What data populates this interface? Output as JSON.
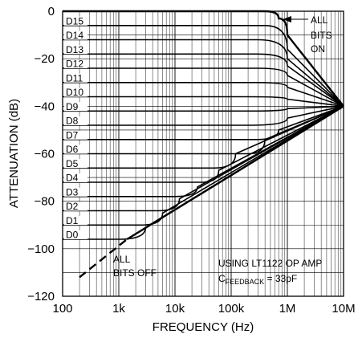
{
  "chart_data": {
    "type": "line",
    "xlabel": "FREQUENCY (Hz)",
    "ylabel": "ATTENUATION (dB)",
    "x_scale": "log",
    "xlim": [
      100,
      10000000
    ],
    "ylim": [
      -120,
      0
    ],
    "grid": true,
    "x_ticks": [
      100,
      1000,
      10000,
      100000,
      1000000,
      10000000
    ],
    "x_tick_labels": [
      "100",
      "1k",
      "10k",
      "100k",
      "1M",
      "10M"
    ],
    "y_ticks": [
      0,
      -20,
      -40,
      -60,
      -80,
      -100,
      -120
    ],
    "y_tick_labels": [
      "0",
      "−20",
      "−40",
      "−60",
      "−80",
      "−100",
      "−120"
    ],
    "series": [
      {
        "name": "D15",
        "points": [
          [
            100,
            -6
          ],
          [
            400000,
            -6
          ],
          [
            1000000,
            -16
          ],
          [
            10000000,
            -40
          ]
        ]
      },
      {
        "name": "D14",
        "points": [
          [
            100,
            -12
          ],
          [
            300000,
            -12
          ],
          [
            1000000,
            -20
          ],
          [
            10000000,
            -40
          ]
        ]
      },
      {
        "name": "D13",
        "points": [
          [
            100,
            -18
          ],
          [
            300000,
            -18
          ],
          [
            1000000,
            -23
          ],
          [
            10000000,
            -40
          ]
        ]
      },
      {
        "name": "D12",
        "points": [
          [
            100,
            -24
          ],
          [
            300000,
            -24
          ],
          [
            1000000,
            -27
          ],
          [
            10000000,
            -40
          ]
        ]
      },
      {
        "name": "D11",
        "points": [
          [
            100,
            -30
          ],
          [
            300000,
            -30
          ],
          [
            1000000,
            -32
          ],
          [
            10000000,
            -40
          ]
        ]
      },
      {
        "name": "D10",
        "points": [
          [
            100,
            -36
          ],
          [
            200000,
            -36
          ],
          [
            1000000,
            -37
          ],
          [
            10000000,
            -40
          ]
        ]
      },
      {
        "name": "D9",
        "points": [
          [
            100,
            -42
          ],
          [
            200000,
            -42
          ],
          [
            1000000,
            -41
          ],
          [
            10000000,
            -40
          ]
        ]
      },
      {
        "name": "D8",
        "points": [
          [
            100,
            -48
          ],
          [
            200000,
            -48
          ],
          [
            1000000,
            -45
          ],
          [
            10000000,
            -40
          ]
        ]
      },
      {
        "name": "D7",
        "points": [
          [
            100,
            -54
          ],
          [
            300000,
            -54
          ],
          [
            700000,
            -50
          ],
          [
            10000000,
            -40
          ]
        ]
      },
      {
        "name": "D6",
        "points": [
          [
            100,
            -60
          ],
          [
            200000,
            -60
          ],
          [
            400000,
            -54
          ],
          [
            10000000,
            -40
          ]
        ]
      },
      {
        "name": "D5",
        "points": [
          [
            100,
            -66
          ],
          [
            50000,
            -66
          ],
          [
            120000,
            -60
          ],
          [
            10000000,
            -40
          ]
        ]
      },
      {
        "name": "D4",
        "points": [
          [
            100,
            -72
          ],
          [
            30000,
            -72
          ],
          [
            60000,
            -67
          ],
          [
            10000000,
            -40
          ]
        ]
      },
      {
        "name": "D3",
        "points": [
          [
            100,
            -78
          ],
          [
            10000,
            -78
          ],
          [
            25000,
            -74
          ],
          [
            10000000,
            -40
          ]
        ]
      },
      {
        "name": "D2",
        "points": [
          [
            100,
            -84
          ],
          [
            5000,
            -84
          ],
          [
            12000,
            -79
          ],
          [
            10000000,
            -40
          ]
        ]
      },
      {
        "name": "D1",
        "points": [
          [
            100,
            -90
          ],
          [
            2500,
            -90
          ],
          [
            6000,
            -85
          ],
          [
            10000000,
            -40
          ]
        ]
      },
      {
        "name": "D0",
        "points": [
          [
            100,
            -96
          ],
          [
            1000,
            -96
          ],
          [
            3000,
            -91
          ],
          [
            10000000,
            -40
          ]
        ]
      }
    ],
    "all_bits_on": {
      "points": [
        [
          100,
          0
        ],
        [
          400000,
          0
        ],
        [
          700000,
          -3
        ],
        [
          1000000,
          -10
        ],
        [
          10000000,
          -40
        ]
      ]
    },
    "all_bits_off": {
      "points": [
        [
          1400,
          -96
        ],
        [
          10000000,
          -40
        ]
      ]
    },
    "all_bits_off_dashed": {
      "points": [
        [
          200,
          -112
        ],
        [
          1400,
          -96
        ]
      ]
    },
    "annotations": {
      "all_bits_on": [
        "ALL",
        "BITS",
        "ON"
      ],
      "all_bits_off": [
        "ALL",
        "BITS OFF"
      ],
      "op_amp": "USING LT1122 OP AMP",
      "cfeedback_c": "C",
      "cfeedback_sub": "FEEDBACK",
      "cfeedback_value": " = 33pF"
    }
  }
}
